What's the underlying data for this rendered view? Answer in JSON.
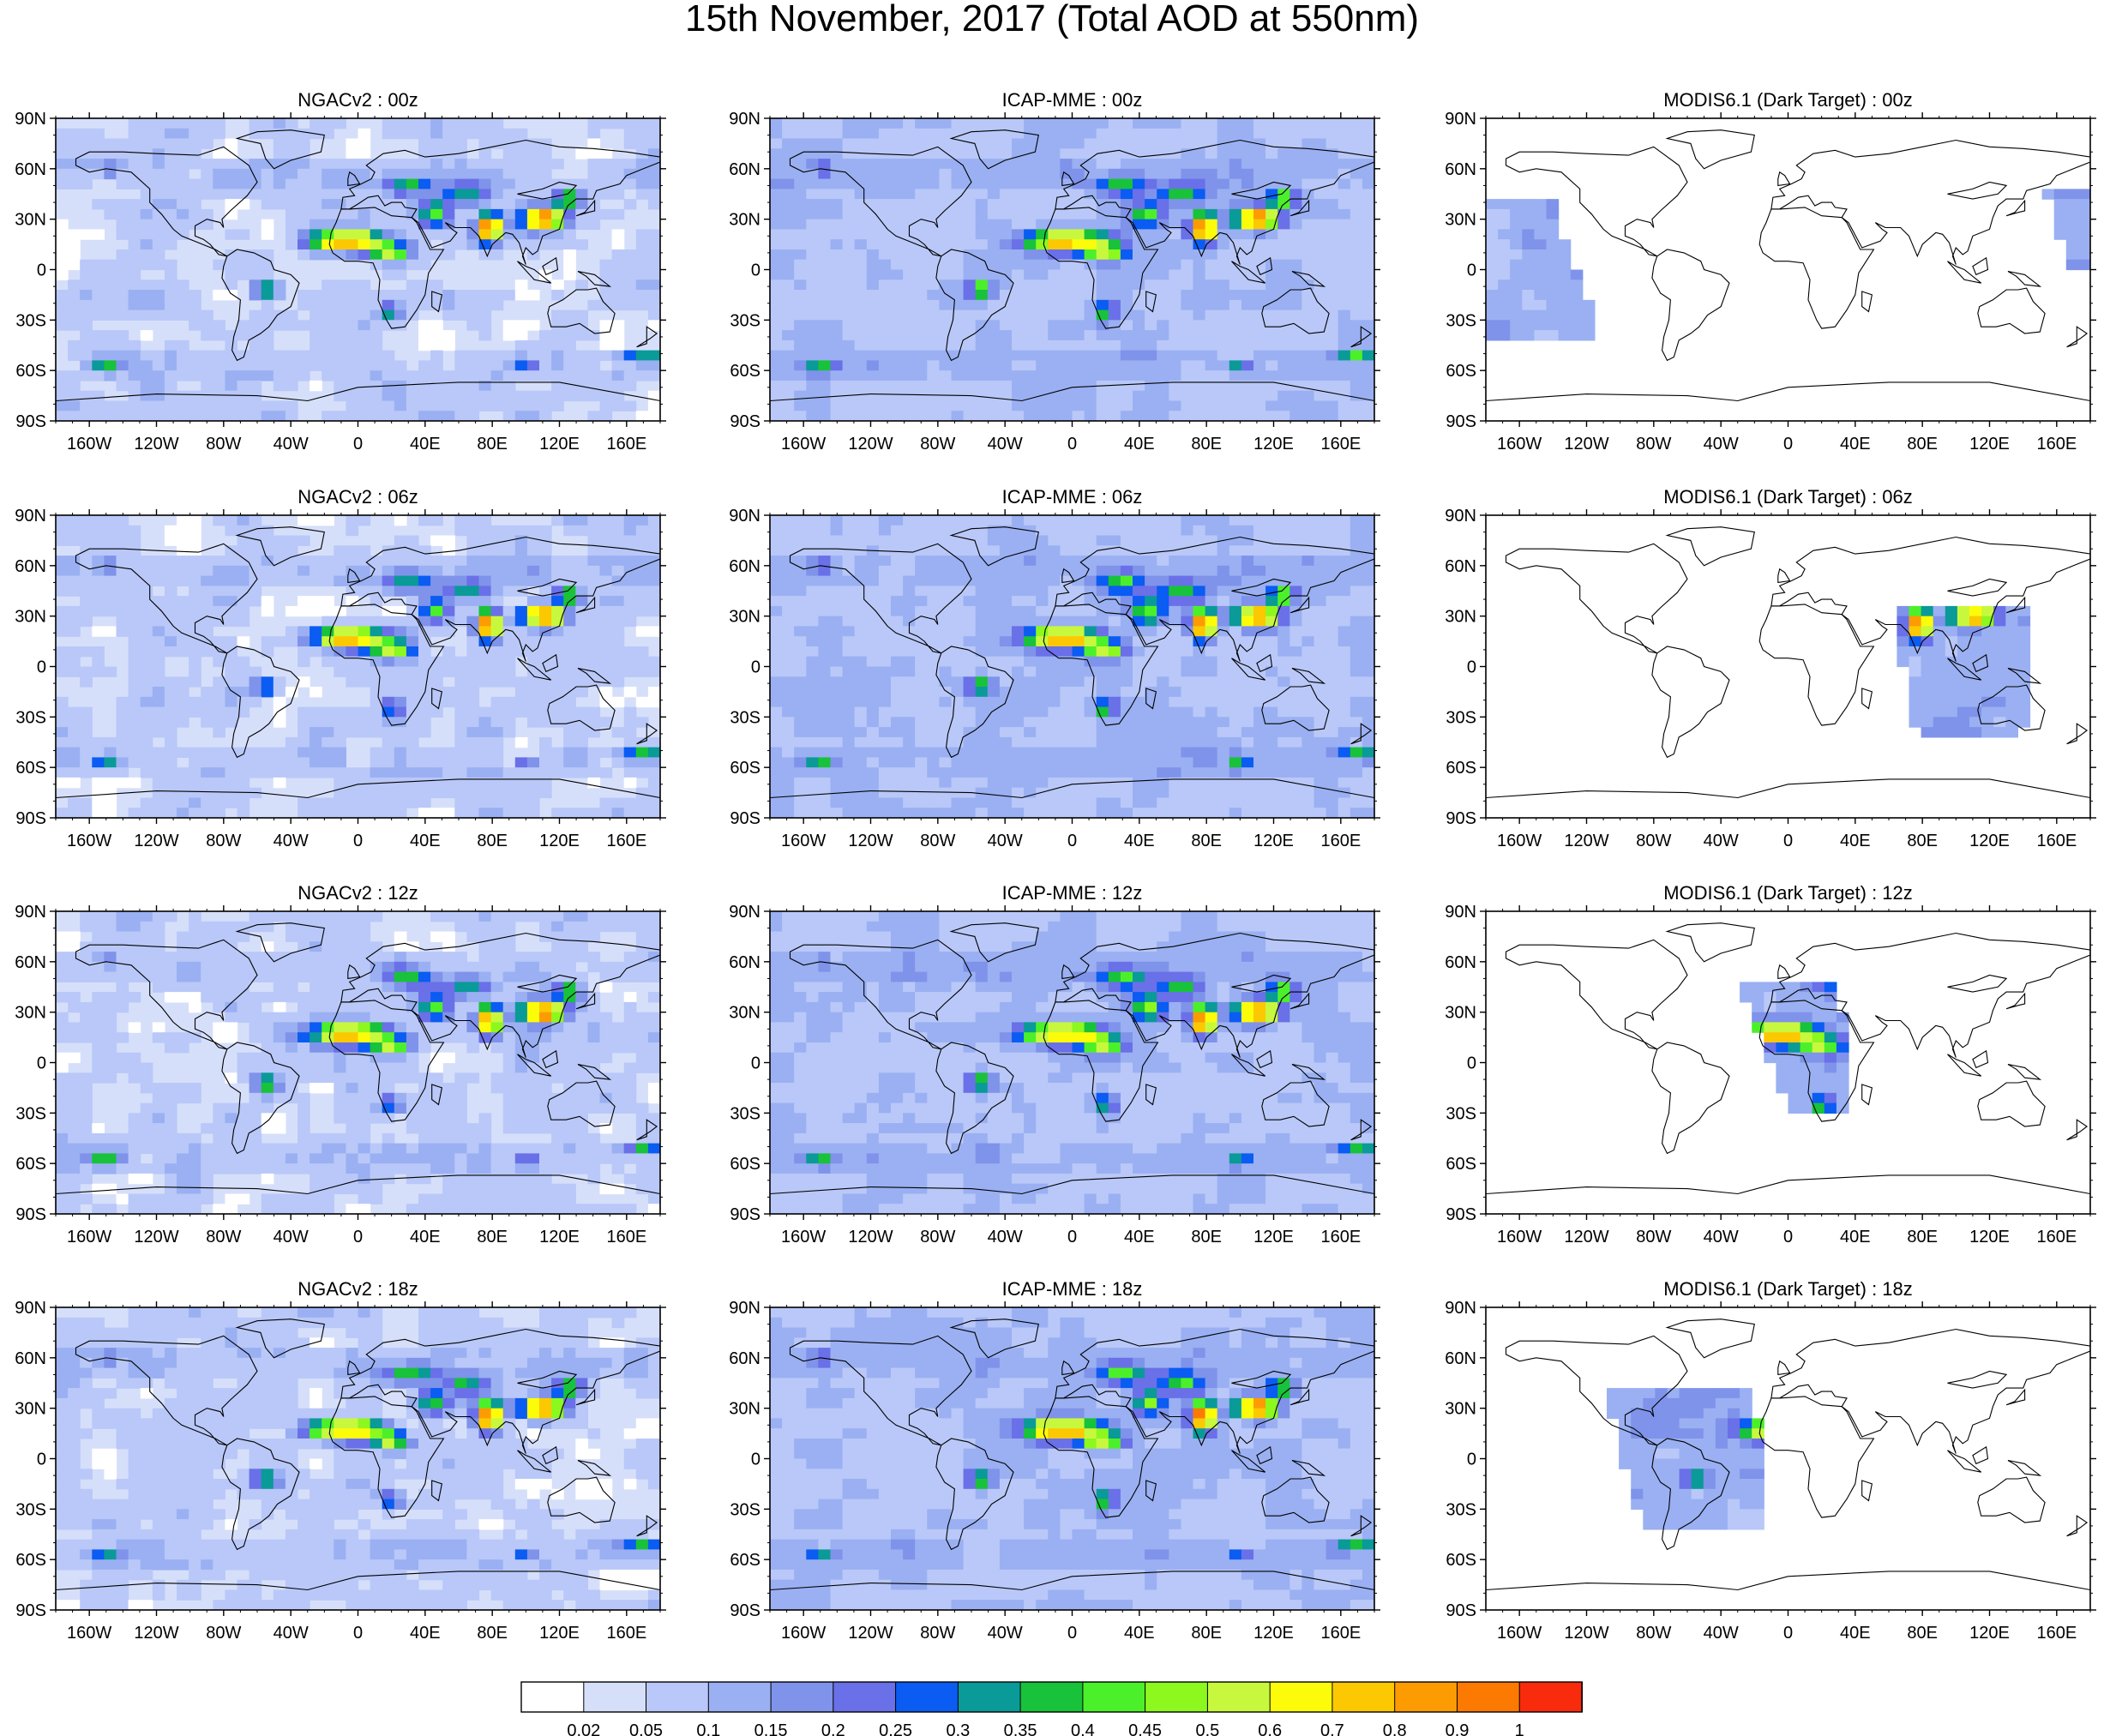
{
  "figure": {
    "title": "15th November, 2017 (Total AOD at 550nm)"
  },
  "panels": [
    {
      "title": "NGACv2 : 00z",
      "model": "NGACv2",
      "time": "00z"
    },
    {
      "title": "ICAP-MME : 00z",
      "model": "ICAP-MME",
      "time": "00z"
    },
    {
      "title": "MODIS6.1 (Dark Target) : 00z",
      "model": "MODIS6.1 (Dark Target)",
      "time": "00z"
    },
    {
      "title": "NGACv2 : 06z",
      "model": "NGACv2",
      "time": "06z"
    },
    {
      "title": "ICAP-MME : 06z",
      "model": "ICAP-MME",
      "time": "06z"
    },
    {
      "title": "MODIS6.1 (Dark Target) : 06z",
      "model": "MODIS6.1 (Dark Target)",
      "time": "06z"
    },
    {
      "title": "NGACv2 : 12z",
      "model": "NGACv2",
      "time": "12z"
    },
    {
      "title": "ICAP-MME : 12z",
      "model": "ICAP-MME",
      "time": "12z"
    },
    {
      "title": "MODIS6.1 (Dark Target) : 12z",
      "model": "MODIS6.1 (Dark Target)",
      "time": "12z"
    },
    {
      "title": "NGACv2 : 18z",
      "model": "NGACv2",
      "time": "18z"
    },
    {
      "title": "ICAP-MME : 18z",
      "model": "ICAP-MME",
      "time": "18z"
    },
    {
      "title": "MODIS6.1 (Dark Target) : 18z",
      "model": "MODIS6.1 (Dark Target)",
      "time": "18z"
    }
  ],
  "axes": {
    "lat_labels": [
      "90N",
      "60N",
      "30N",
      "0",
      "30S",
      "60S",
      "90S"
    ],
    "lat_values": [
      90,
      60,
      30,
      0,
      -30,
      -60,
      -90
    ],
    "lon_labels": [
      "160W",
      "120W",
      "80W",
      "40W",
      "0",
      "40E",
      "80E",
      "120E",
      "160E"
    ],
    "lon_values": [
      -160,
      -120,
      -80,
      -40,
      0,
      40,
      80,
      120,
      160
    ],
    "lon_range": [
      -180,
      180
    ],
    "lat_range": [
      -90,
      90
    ]
  },
  "colorbar": {
    "labels": [
      "0.02",
      "0.05",
      "0.1",
      "0.15",
      "0.2",
      "0.25",
      "0.3",
      "0.35",
      "0.4",
      "0.45",
      "0.5",
      "0.6",
      "0.7",
      "0.8",
      "0.9",
      "1"
    ],
    "colors": [
      "#ffffff",
      "#d6dffa",
      "#b9c8f8",
      "#9ab0f2",
      "#7f93ea",
      "#6a70e8",
      "#0a5cf2",
      "#0a9a98",
      "#18c23a",
      "#4cf02a",
      "#8cf81e",
      "#c8f83e",
      "#fcfc0a",
      "#fcc802",
      "#fc9c02",
      "#fc7a02",
      "#f82c0c"
    ]
  },
  "colors": {
    "coastline": "#000000",
    "ocean_base": "#d6dffa",
    "land_base": "#b9c8f8"
  }
}
